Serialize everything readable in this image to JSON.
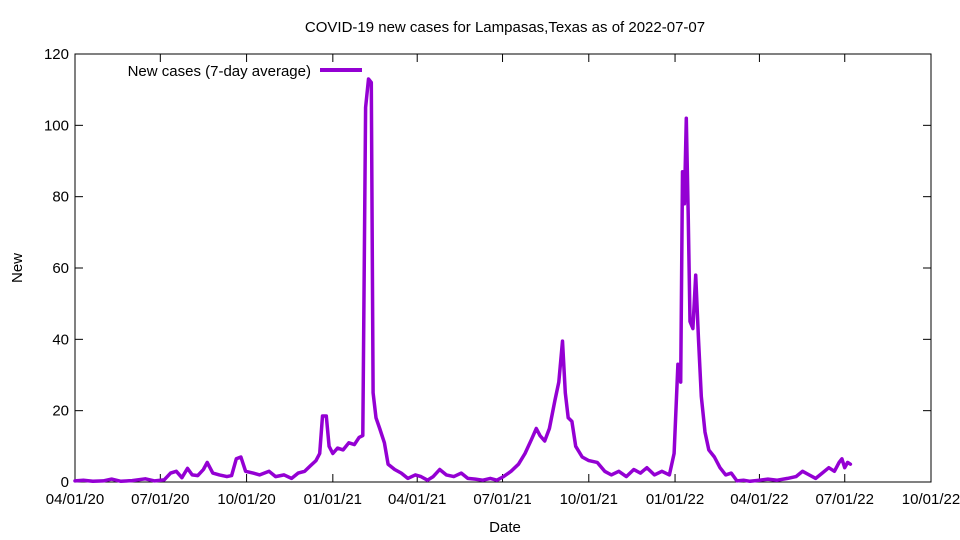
{
  "chart_data": {
    "type": "line",
    "title": "COVID-19 new cases for Lampasas,Texas as of 2022-07-07",
    "xlabel": "Date",
    "ylabel": "New",
    "ylim": [
      0,
      120
    ],
    "xlim": [
      "2020-04-01",
      "2022-10-01"
    ],
    "yticks": [
      0,
      20,
      40,
      60,
      80,
      100,
      120
    ],
    "xticks": [
      "04/01/20",
      "07/01/20",
      "10/01/20",
      "01/01/21",
      "04/01/21",
      "07/01/21",
      "10/01/21",
      "01/01/22",
      "04/01/22",
      "07/01/22",
      "10/01/22"
    ],
    "xtick_dates": [
      "2020-04-01",
      "2020-07-01",
      "2020-10-01",
      "2021-01-01",
      "2021-04-01",
      "2021-07-01",
      "2021-10-01",
      "2022-01-01",
      "2022-04-01",
      "2022-07-01",
      "2022-10-01"
    ],
    "grid": false,
    "legend": "top-left",
    "series": [
      {
        "name": "New cases (7-day average)",
        "color": "#9400d3",
        "points": [
          [
            "2020-04-01",
            0.3
          ],
          [
            "2020-04-10",
            0.5
          ],
          [
            "2020-04-20",
            0.2
          ],
          [
            "2020-05-01",
            0.3
          ],
          [
            "2020-05-10",
            0.8
          ],
          [
            "2020-05-20",
            0.2
          ],
          [
            "2020-06-01",
            0.4
          ],
          [
            "2020-06-15",
            0.9
          ],
          [
            "2020-06-25",
            0.3
          ],
          [
            "2020-07-05",
            0.6
          ],
          [
            "2020-07-12",
            2.5
          ],
          [
            "2020-07-18",
            3.0
          ],
          [
            "2020-07-24",
            1.2
          ],
          [
            "2020-07-30",
            3.8
          ],
          [
            "2020-08-04",
            2.0
          ],
          [
            "2020-08-10",
            1.8
          ],
          [
            "2020-08-16",
            3.5
          ],
          [
            "2020-08-20",
            5.5
          ],
          [
            "2020-08-26",
            2.5
          ],
          [
            "2020-09-02",
            2.0
          ],
          [
            "2020-09-10",
            1.5
          ],
          [
            "2020-09-15",
            1.8
          ],
          [
            "2020-09-20",
            6.5
          ],
          [
            "2020-09-25",
            7.0
          ],
          [
            "2020-09-30",
            3.0
          ],
          [
            "2020-10-08",
            2.5
          ],
          [
            "2020-10-15",
            2.0
          ],
          [
            "2020-10-25",
            3.0
          ],
          [
            "2020-11-01",
            1.5
          ],
          [
            "2020-11-10",
            2.0
          ],
          [
            "2020-11-18",
            1.0
          ],
          [
            "2020-11-25",
            2.5
          ],
          [
            "2020-12-02",
            3.0
          ],
          [
            "2020-12-08",
            4.5
          ],
          [
            "2020-12-14",
            6.0
          ],
          [
            "2020-12-18",
            8.0
          ],
          [
            "2020-12-21",
            18.5
          ],
          [
            "2020-12-25",
            18.5
          ],
          [
            "2020-12-28",
            10.0
          ],
          [
            "2021-01-01",
            8.0
          ],
          [
            "2021-01-06",
            9.5
          ],
          [
            "2021-01-12",
            9.0
          ],
          [
            "2021-01-18",
            11.0
          ],
          [
            "2021-01-24",
            10.5
          ],
          [
            "2021-01-29",
            12.5
          ],
          [
            "2021-02-02",
            13.0
          ],
          [
            "2021-02-05",
            105.0
          ],
          [
            "2021-02-08",
            113.0
          ],
          [
            "2021-02-11",
            112.0
          ],
          [
            "2021-02-13",
            25.0
          ],
          [
            "2021-02-16",
            18.0
          ],
          [
            "2021-02-20",
            15.0
          ],
          [
            "2021-02-25",
            11.0
          ],
          [
            "2021-03-01",
            5.0
          ],
          [
            "2021-03-08",
            3.5
          ],
          [
            "2021-03-15",
            2.5
          ],
          [
            "2021-03-22",
            1.0
          ],
          [
            "2021-03-30",
            2.0
          ],
          [
            "2021-04-05",
            1.5
          ],
          [
            "2021-04-12",
            0.5
          ],
          [
            "2021-04-18",
            1.5
          ],
          [
            "2021-04-25",
            3.5
          ],
          [
            "2021-05-02",
            2.0
          ],
          [
            "2021-05-10",
            1.5
          ],
          [
            "2021-05-18",
            2.5
          ],
          [
            "2021-05-25",
            1.0
          ],
          [
            "2021-06-02",
            0.8
          ],
          [
            "2021-06-10",
            0.5
          ],
          [
            "2021-06-18",
            1.0
          ],
          [
            "2021-06-25",
            0.5
          ],
          [
            "2021-07-02",
            1.5
          ],
          [
            "2021-07-10",
            3.0
          ],
          [
            "2021-07-18",
            5.0
          ],
          [
            "2021-07-25",
            8.0
          ],
          [
            "2021-08-01",
            12.0
          ],
          [
            "2021-08-06",
            15.0
          ],
          [
            "2021-08-10",
            13.0
          ],
          [
            "2021-08-15",
            11.5
          ],
          [
            "2021-08-20",
            15.0
          ],
          [
            "2021-08-26",
            23.0
          ],
          [
            "2021-08-30",
            28.0
          ],
          [
            "2021-09-03",
            39.5
          ],
          [
            "2021-09-06",
            25.0
          ],
          [
            "2021-09-09",
            18.0
          ],
          [
            "2021-09-13",
            17.0
          ],
          [
            "2021-09-17",
            10.0
          ],
          [
            "2021-09-24",
            7.0
          ],
          [
            "2021-10-01",
            6.0
          ],
          [
            "2021-10-10",
            5.5
          ],
          [
            "2021-10-18",
            3.0
          ],
          [
            "2021-10-25",
            2.0
          ],
          [
            "2021-11-02",
            3.0
          ],
          [
            "2021-11-10",
            1.5
          ],
          [
            "2021-11-18",
            3.5
          ],
          [
            "2021-11-25",
            2.5
          ],
          [
            "2021-12-02",
            4.0
          ],
          [
            "2021-12-10",
            2.0
          ],
          [
            "2021-12-18",
            3.0
          ],
          [
            "2021-12-26",
            2.0
          ],
          [
            "2021-12-31",
            8.0
          ],
          [
            "2022-01-04",
            33.0
          ],
          [
            "2022-01-07",
            28.0
          ],
          [
            "2022-01-09",
            87.0
          ],
          [
            "2022-01-11",
            78.0
          ],
          [
            "2022-01-13",
            102.0
          ],
          [
            "2022-01-15",
            75.0
          ],
          [
            "2022-01-17",
            45.0
          ],
          [
            "2022-01-20",
            43.0
          ],
          [
            "2022-01-23",
            58.0
          ],
          [
            "2022-01-26",
            40.0
          ],
          [
            "2022-01-29",
            24.0
          ],
          [
            "2022-02-02",
            14.0
          ],
          [
            "2022-02-06",
            9.0
          ],
          [
            "2022-02-12",
            7.0
          ],
          [
            "2022-02-18",
            4.0
          ],
          [
            "2022-02-24",
            2.0
          ],
          [
            "2022-03-02",
            2.5
          ],
          [
            "2022-03-08",
            0.3
          ],
          [
            "2022-03-15",
            0.5
          ],
          [
            "2022-03-22",
            0.2
          ],
          [
            "2022-04-01",
            0.5
          ],
          [
            "2022-04-10",
            0.8
          ],
          [
            "2022-04-20",
            0.5
          ],
          [
            "2022-05-01",
            1.0
          ],
          [
            "2022-05-10",
            1.5
          ],
          [
            "2022-05-17",
            3.0
          ],
          [
            "2022-05-24",
            2.0
          ],
          [
            "2022-05-31",
            1.0
          ],
          [
            "2022-06-07",
            2.5
          ],
          [
            "2022-06-14",
            4.0
          ],
          [
            "2022-06-20",
            3.0
          ],
          [
            "2022-06-25",
            5.5
          ],
          [
            "2022-06-28",
            6.5
          ],
          [
            "2022-07-01",
            4.0
          ],
          [
            "2022-07-04",
            5.5
          ],
          [
            "2022-07-07",
            5.0
          ]
        ]
      }
    ]
  }
}
